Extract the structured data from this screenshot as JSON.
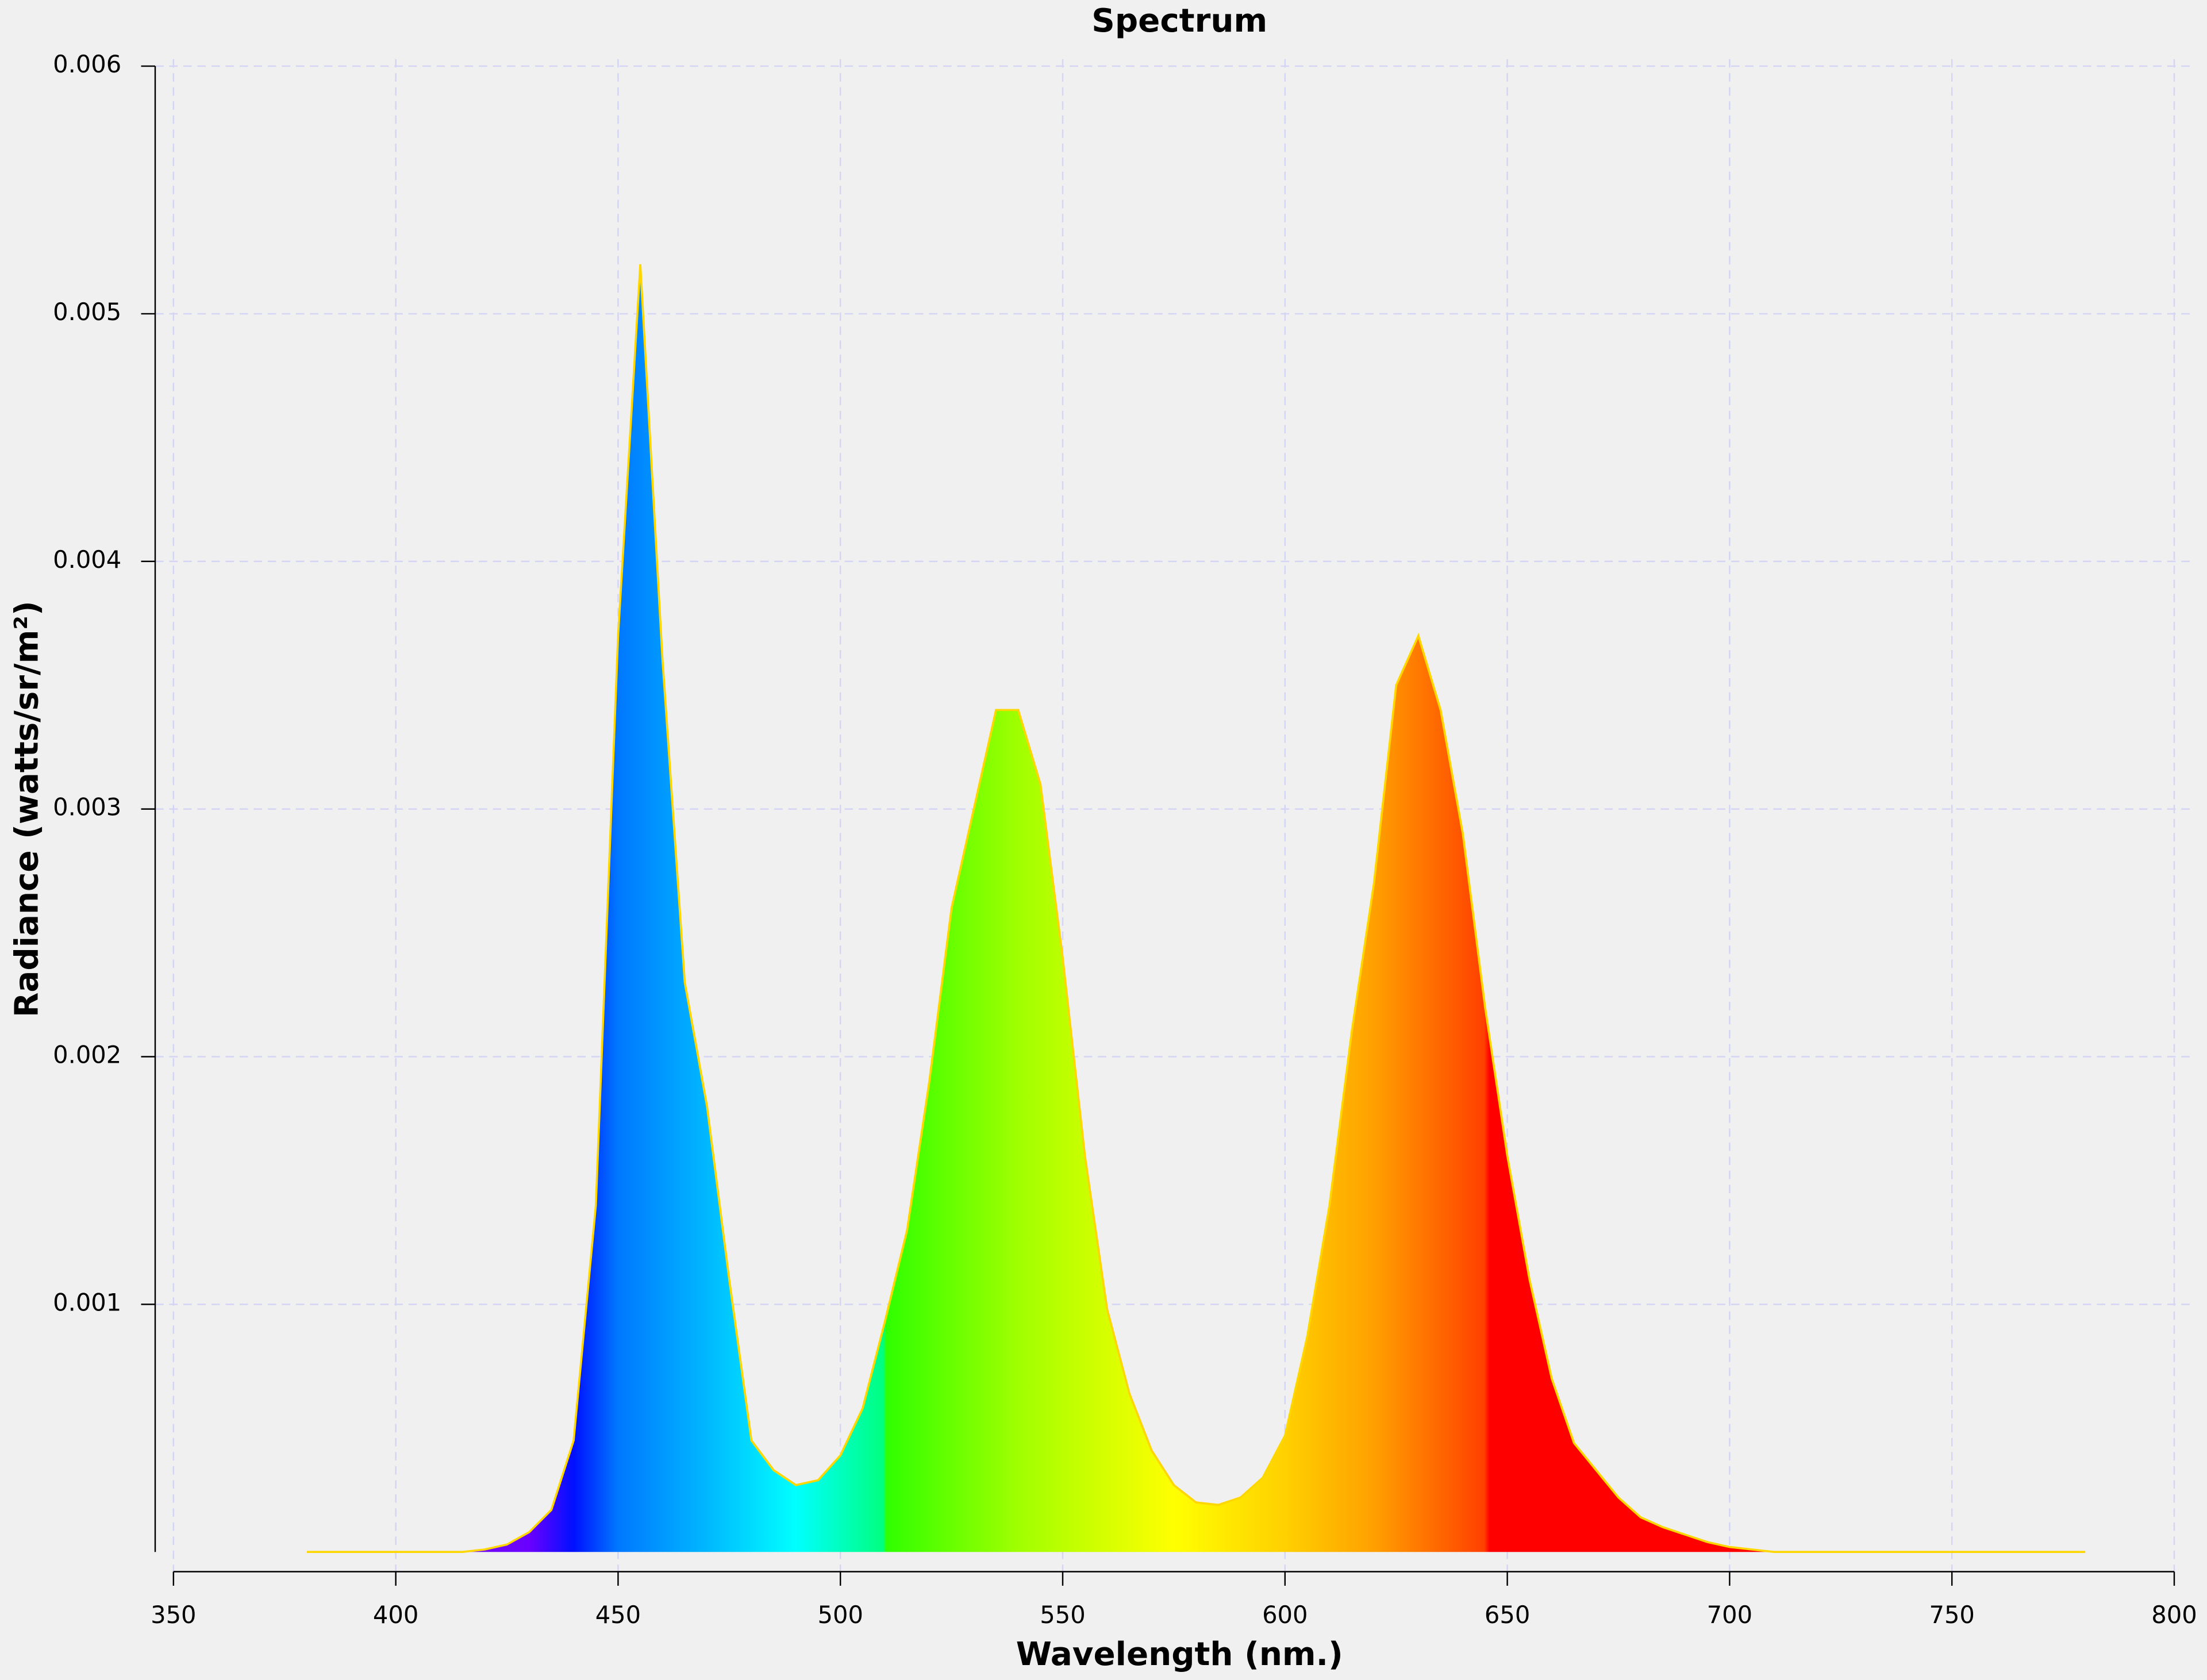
{
  "chart_data": {
    "type": "area",
    "title": "Spectrum",
    "xlabel": "Wavelength (nm.)",
    "ylabel": "Radiance (watts/sr/m²)",
    "x": [
      380,
      385,
      390,
      395,
      400,
      405,
      410,
      415,
      420,
      425,
      430,
      435,
      440,
      445,
      450,
      455,
      460,
      465,
      470,
      475,
      480,
      485,
      490,
      495,
      500,
      505,
      510,
      515,
      520,
      525,
      530,
      535,
      540,
      545,
      550,
      555,
      560,
      565,
      570,
      575,
      580,
      585,
      590,
      595,
      600,
      605,
      610,
      615,
      620,
      625,
      630,
      635,
      640,
      645,
      650,
      655,
      660,
      665,
      670,
      675,
      680,
      685,
      690,
      695,
      700,
      705,
      710,
      715,
      720,
      725,
      730,
      735,
      740,
      745,
      750,
      755,
      760,
      765,
      770,
      775,
      780
    ],
    "values": [
      0,
      0,
      0,
      0,
      0,
      0,
      0,
      0,
      1e-05,
      3e-05,
      8e-05,
      0.00017,
      0.00045,
      0.0014,
      0.0037,
      0.0052,
      0.0036,
      0.0023,
      0.0018,
      0.0011,
      0.00045,
      0.00033,
      0.00027,
      0.00029,
      0.00039,
      0.00058,
      0.00093,
      0.0013,
      0.0019,
      0.0026,
      0.003,
      0.0034,
      0.0034,
      0.0031,
      0.0024,
      0.0016,
      0.00098,
      0.00064,
      0.00041,
      0.00027,
      0.0002,
      0.00019,
      0.00022,
      0.0003,
      0.00047,
      0.00087,
      0.0014,
      0.0021,
      0.0027,
      0.0035,
      0.0037,
      0.0034,
      0.0029,
      0.0022,
      0.0016,
      0.0011,
      0.0007,
      0.00044,
      0.00033,
      0.00022,
      0.00014,
      0.0001,
      7e-05,
      4e-05,
      2e-05,
      1e-05,
      0,
      0,
      0,
      0,
      0,
      0,
      0,
      0,
      0,
      0,
      0,
      0,
      0,
      0,
      0
    ],
    "color": "#ffd700",
    "xlim": [
      350,
      800
    ],
    "xticks": [
      350,
      400,
      450,
      500,
      550,
      600,
      650,
      700,
      750,
      800
    ],
    "ylim": [
      0,
      0.006
    ],
    "yticks": [
      0.001,
      0.002,
      0.003,
      0.004,
      0.005,
      0.006
    ],
    "grid": true
  }
}
